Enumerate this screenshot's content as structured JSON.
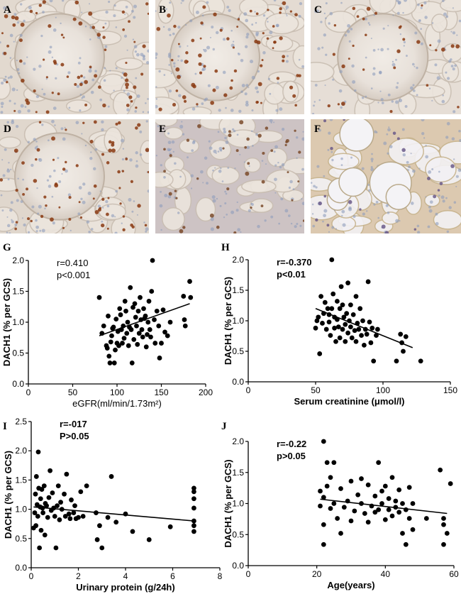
{
  "micrographs": [
    {
      "letter": "A",
      "tone": "#e2d9cf",
      "nuclei": "#8a3a12"
    },
    {
      "letter": "B",
      "tone": "#e4dbd2",
      "nuclei": "#8a3a12"
    },
    {
      "letter": "C",
      "tone": "#e6ded6",
      "nuclei": "#8a3a12"
    },
    {
      "letter": "D",
      "tone": "#e0d7cd",
      "nuclei": "#8a3a12"
    },
    {
      "letter": "E",
      "tone": "#cdc3c4",
      "nuclei": "#7a4a2a"
    },
    {
      "letter": "F",
      "tone": "#dcc9b0",
      "nuclei": "#6b5a8a"
    }
  ],
  "chart_data": [
    {
      "panel": "G",
      "type": "scatter",
      "xlabel": "eGFR(ml/min/1.73m²)",
      "ylabel": "DACH1 (% per GCS)",
      "xlim": [
        0,
        200
      ],
      "ylim": [
        0,
        2.0
      ],
      "xticks": [
        0,
        50,
        100,
        150,
        200
      ],
      "yticks": [
        0.0,
        0.5,
        1.0,
        1.5,
        2.0
      ],
      "stats": [
        "r=0.410",
        "p<0.001"
      ],
      "stats_bold": false,
      "xlabel_bold": false,
      "trend": {
        "x": [
          80,
          182
        ],
        "y": [
          0.78,
          1.3
        ]
      },
      "points": [
        [
          80,
          1.4
        ],
        [
          83,
          0.82
        ],
        [
          85,
          0.94
        ],
        [
          88,
          0.62
        ],
        [
          89,
          0.58
        ],
        [
          90,
          1.1
        ],
        [
          91,
          0.45
        ],
        [
          92,
          0.34
        ],
        [
          93,
          0.68
        ],
        [
          94,
          0.78
        ],
        [
          95,
          0.9
        ],
        [
          96,
          0.92
        ],
        [
          97,
          0.34
        ],
        [
          98,
          0.55
        ],
        [
          99,
          1.05
        ],
        [
          100,
          0.66
        ],
        [
          101,
          0.85
        ],
        [
          102,
          0.62
        ],
        [
          103,
          1.22
        ],
        [
          104,
          1.12
        ],
        [
          105,
          0.88
        ],
        [
          106,
          0.66
        ],
        [
          107,
          0.94
        ],
        [
          108,
          0.74
        ],
        [
          109,
          1.34
        ],
        [
          110,
          1.18
        ],
        [
          111,
          0.82
        ],
        [
          112,
          1.0
        ],
        [
          113,
          0.62
        ],
        [
          114,
          0.92
        ],
        [
          115,
          1.56
        ],
        [
          116,
          0.88
        ],
        [
          117,
          0.34
        ],
        [
          118,
          1.24
        ],
        [
          119,
          0.72
        ],
        [
          120,
          1.3
        ],
        [
          121,
          1.08
        ],
        [
          122,
          0.94
        ],
        [
          123,
          0.64
        ],
        [
          124,
          1.18
        ],
        [
          125,
          0.82
        ],
        [
          126,
          1.4
        ],
        [
          127,
          1.04
        ],
        [
          128,
          0.88
        ],
        [
          129,
          0.76
        ],
        [
          130,
          1.22
        ],
        [
          131,
          1.06
        ],
        [
          132,
          1.1
        ],
        [
          133,
          0.6
        ],
        [
          134,
          0.8
        ],
        [
          135,
          1.0
        ],
        [
          136,
          1.34
        ],
        [
          137,
          0.88
        ],
        [
          138,
          0.76
        ],
        [
          139,
          1.5
        ],
        [
          140,
          2.0
        ],
        [
          142,
          1.04
        ],
        [
          143,
          0.66
        ],
        [
          145,
          1.18
        ],
        [
          147,
          0.94
        ],
        [
          148,
          0.42
        ],
        [
          150,
          0.66
        ],
        [
          152,
          1.2
        ],
        [
          154,
          0.84
        ],
        [
          157,
          0.78
        ],
        [
          160,
          1.0
        ],
        [
          175,
          1.42
        ],
        [
          176,
          1.04
        ],
        [
          177,
          0.94
        ],
        [
          182,
          1.66
        ],
        [
          183,
          1.4
        ]
      ]
    },
    {
      "panel": "H",
      "type": "scatter",
      "xlabel": "Serum creatinine (μmol/l)",
      "ylabel": "DACH1 (% per GCS)",
      "xlim": [
        0,
        150
      ],
      "ylim": [
        0,
        2.0
      ],
      "xticks": [
        0,
        50,
        100,
        150
      ],
      "yticks": [
        0.0,
        0.5,
        1.0,
        1.5,
        2.0
      ],
      "stats": [
        "r=-0.370",
        "p<0.01"
      ],
      "stats_bold": true,
      "xlabel_bold": true,
      "trend": {
        "x": [
          50,
          122
        ],
        "y": [
          1.2,
          0.56
        ]
      },
      "points": [
        [
          50,
          0.88
        ],
        [
          51,
          1.0
        ],
        [
          52,
          1.06
        ],
        [
          53,
          0.46
        ],
        [
          54,
          1.4
        ],
        [
          55,
          0.96
        ],
        [
          56,
          1.12
        ],
        [
          57,
          1.3
        ],
        [
          58,
          0.86
        ],
        [
          59,
          1.2
        ],
        [
          60,
          0.98
        ],
        [
          60,
          1.1
        ],
        [
          61,
          0.76
        ],
        [
          62,
          2.0
        ],
        [
          62,
          1.2
        ],
        [
          63,
          1.44
        ],
        [
          64,
          0.88
        ],
        [
          64,
          1.06
        ],
        [
          65,
          0.66
        ],
        [
          66,
          1.32
        ],
        [
          66,
          1.02
        ],
        [
          67,
          0.9
        ],
        [
          68,
          1.2
        ],
        [
          68,
          0.72
        ],
        [
          69,
          1.56
        ],
        [
          70,
          0.86
        ],
        [
          70,
          1.26
        ],
        [
          71,
          1.06
        ],
        [
          72,
          0.94
        ],
        [
          72,
          0.66
        ],
        [
          73,
          1.12
        ],
        [
          74,
          1.62
        ],
        [
          74,
          0.8
        ],
        [
          75,
          1.0
        ],
        [
          76,
          1.26
        ],
        [
          76,
          0.9
        ],
        [
          77,
          0.72
        ],
        [
          78,
          1.1
        ],
        [
          79,
          0.84
        ],
        [
          80,
          1.4
        ],
        [
          80,
          0.66
        ],
        [
          81,
          0.96
        ],
        [
          82,
          0.86
        ],
        [
          83,
          1.2
        ],
        [
          84,
          0.76
        ],
        [
          85,
          1.0
        ],
        [
          86,
          0.6
        ],
        [
          87,
          0.86
        ],
        [
          88,
          0.78
        ],
        [
          89,
          1.64
        ],
        [
          90,
          0.98
        ],
        [
          91,
          0.64
        ],
        [
          92,
          0.88
        ],
        [
          93,
          0.34
        ],
        [
          95,
          0.76
        ],
        [
          96,
          0.86
        ],
        [
          110,
          0.34
        ],
        [
          113,
          0.78
        ],
        [
          114,
          0.64
        ],
        [
          115,
          0.5
        ],
        [
          117,
          0.74
        ],
        [
          128,
          0.34
        ]
      ]
    },
    {
      "panel": "I",
      "type": "scatter",
      "xlabel": "Urinary protein (g/24h)",
      "ylabel": "DACH1 (% per GCS)",
      "xlim": [
        0,
        8
      ],
      "ylim": [
        0,
        2.5
      ],
      "xticks": [
        0,
        2,
        4,
        6,
        8
      ],
      "yticks": [
        0.0,
        0.5,
        1.0,
        1.5,
        2.0,
        2.5
      ],
      "stats": [
        "r=-017",
        "P>0.05"
      ],
      "stats_bold": true,
      "xlabel_bold": true,
      "trend": {
        "x": [
          0.1,
          6.9
        ],
        "y": [
          1.04,
          0.8
        ]
      },
      "points": [
        [
          0.1,
          0.68
        ],
        [
          0.15,
          0.94
        ],
        [
          0.18,
          1.26
        ],
        [
          0.2,
          0.72
        ],
        [
          0.22,
          1.56
        ],
        [
          0.25,
          1.08
        ],
        [
          0.28,
          0.88
        ],
        [
          0.3,
          1.98
        ],
        [
          0.32,
          1.36
        ],
        [
          0.35,
          0.34
        ],
        [
          0.38,
          1.04
        ],
        [
          0.4,
          1.18
        ],
        [
          0.42,
          0.64
        ],
        [
          0.45,
          1.34
        ],
        [
          0.48,
          1.02
        ],
        [
          0.5,
          0.94
        ],
        [
          0.55,
          1.4
        ],
        [
          0.58,
          0.56
        ],
        [
          0.6,
          1.1
        ],
        [
          0.65,
          1.06
        ],
        [
          0.7,
          0.86
        ],
        [
          0.75,
          1.2
        ],
        [
          0.8,
          1.66
        ],
        [
          0.85,
          0.98
        ],
        [
          0.9,
          1.28
        ],
        [
          0.95,
          1.02
        ],
        [
          1.0,
          0.88
        ],
        [
          1.05,
          0.34
        ],
        [
          1.1,
          1.06
        ],
        [
          1.15,
          1.4
        ],
        [
          1.2,
          0.82
        ],
        [
          1.25,
          1.12
        ],
        [
          1.3,
          1.0
        ],
        [
          1.4,
          1.26
        ],
        [
          1.45,
          0.88
        ],
        [
          1.5,
          1.6
        ],
        [
          1.6,
          0.92
        ],
        [
          1.65,
          0.84
        ],
        [
          1.7,
          1.16
        ],
        [
          1.8,
          0.94
        ],
        [
          1.85,
          1.06
        ],
        [
          1.9,
          0.84
        ],
        [
          2.0,
          0.86
        ],
        [
          2.1,
          1.3
        ],
        [
          2.2,
          0.88
        ],
        [
          2.35,
          1.4
        ],
        [
          2.75,
          0.94
        ],
        [
          2.8,
          0.48
        ],
        [
          2.9,
          0.72
        ],
        [
          3.0,
          0.34
        ],
        [
          3.25,
          0.86
        ],
        [
          3.4,
          1.56
        ],
        [
          3.6,
          0.78
        ],
        [
          4.0,
          0.92
        ],
        [
          4.3,
          0.62
        ],
        [
          5.0,
          0.48
        ],
        [
          5.9,
          0.7
        ],
        [
          6.9,
          0.62
        ],
        [
          6.9,
          0.72
        ],
        [
          6.9,
          0.8
        ],
        [
          6.9,
          1.02
        ],
        [
          6.9,
          1.18
        ],
        [
          6.9,
          1.3
        ],
        [
          6.9,
          1.36
        ]
      ]
    },
    {
      "panel": "J",
      "type": "scatter",
      "xlabel": "Age(years)",
      "ylabel": "DACH1 (% per GCS)",
      "xlim": [
        0,
        60
      ],
      "ylim": [
        0,
        2.0
      ],
      "xticks": [
        0,
        20,
        40,
        60
      ],
      "yticks": [
        0.0,
        0.5,
        1.0,
        1.5,
        2.0
      ],
      "stats": [
        "r=-0.22",
        "p>0.05"
      ],
      "stats_bold": true,
      "xlabel_bold": true,
      "trend": {
        "x": [
          21,
          58
        ],
        "y": [
          1.07,
          0.84
        ]
      },
      "points": [
        [
          21,
          1.2
        ],
        [
          21,
          0.96
        ],
        [
          22,
          1.1
        ],
        [
          22,
          0.66
        ],
        [
          22,
          2.0
        ],
        [
          22,
          0.34
        ],
        [
          23,
          1.28
        ],
        [
          23,
          1.66
        ],
        [
          24,
          0.92
        ],
        [
          24,
          1.42
        ],
        [
          25,
          1.66
        ],
        [
          25,
          1.0
        ],
        [
          26,
          0.76
        ],
        [
          27,
          1.24
        ],
        [
          27,
          0.52
        ],
        [
          28,
          0.94
        ],
        [
          29,
          1.04
        ],
        [
          30,
          0.72
        ],
        [
          30,
          1.36
        ],
        [
          31,
          0.88
        ],
        [
          32,
          1.14
        ],
        [
          33,
          1.0
        ],
        [
          33,
          1.4
        ],
        [
          34,
          0.84
        ],
        [
          35,
          1.3
        ],
        [
          35,
          0.7
        ],
        [
          36,
          0.96
        ],
        [
          37,
          1.12
        ],
        [
          37,
          0.86
        ],
        [
          38,
          1.66
        ],
        [
          38,
          0.9
        ],
        [
          39,
          1.2
        ],
        [
          39,
          1.0
        ],
        [
          40,
          0.74
        ],
        [
          40,
          1.28
        ],
        [
          41,
          1.08
        ],
        [
          41,
          0.9
        ],
        [
          42,
          1.42
        ],
        [
          42,
          0.8
        ],
        [
          43,
          1.04
        ],
        [
          43,
          0.94
        ],
        [
          44,
          0.86
        ],
        [
          44,
          1.22
        ],
        [
          45,
          1.0
        ],
        [
          45,
          0.52
        ],
        [
          46,
          0.34
        ],
        [
          46,
          0.9
        ],
        [
          47,
          1.26
        ],
        [
          47,
          0.76
        ],
        [
          48,
          1.0
        ],
        [
          48,
          0.58
        ],
        [
          52,
          0.76
        ],
        [
          56,
          1.54
        ],
        [
          57,
          0.66
        ],
        [
          57,
          0.34
        ],
        [
          57,
          0.76
        ],
        [
          58,
          0.52
        ],
        [
          59,
          1.32
        ]
      ]
    }
  ]
}
